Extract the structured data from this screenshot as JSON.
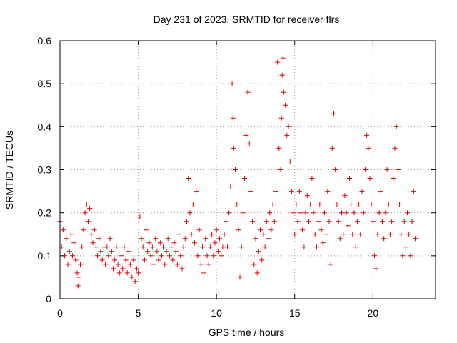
{
  "chart_data": {
    "type": "scatter",
    "title": "Day 231 of 2023, SRMTID for receiver flrs",
    "xlabel": "GPS time / hours",
    "ylabel": "SRMTID / TECUs",
    "xlim": [
      0,
      24
    ],
    "ylim": [
      0,
      0.6
    ],
    "xticks": [
      0,
      5,
      10,
      15,
      20
    ],
    "xtick_labels": [
      "0",
      "5",
      "10",
      "15",
      "20"
    ],
    "yticks": [
      0,
      0.1,
      0.2,
      0.3,
      0.4,
      0.5,
      0.6
    ],
    "ytick_labels": [
      "0",
      "0.1",
      "0.2",
      "0.3",
      "0.4",
      "0.5",
      "0.6"
    ],
    "grid": true,
    "marker": "+",
    "color": "#e00000",
    "series": [
      {
        "name": "flrs",
        "points": [
          [
            0.0,
            0.18
          ],
          [
            0.1,
            0.12
          ],
          [
            0.2,
            0.16
          ],
          [
            0.3,
            0.1
          ],
          [
            0.4,
            0.14
          ],
          [
            0.5,
            0.08
          ],
          [
            0.6,
            0.11
          ],
          [
            0.7,
            0.15
          ],
          [
            0.8,
            0.1
          ],
          [
            0.9,
            0.13
          ],
          [
            1.0,
            0.09
          ],
          [
            1.1,
            0.06
          ],
          [
            1.15,
            0.03
          ],
          [
            1.2,
            0.05
          ],
          [
            1.3,
            0.08
          ],
          [
            1.4,
            0.12
          ],
          [
            1.5,
            0.16
          ],
          [
            1.6,
            0.2
          ],
          [
            1.7,
            0.22
          ],
          [
            1.8,
            0.18
          ],
          [
            1.9,
            0.21
          ],
          [
            2.0,
            0.15
          ],
          [
            2.1,
            0.13
          ],
          [
            2.2,
            0.16
          ],
          [
            2.3,
            0.12
          ],
          [
            2.4,
            0.1
          ],
          [
            2.5,
            0.14
          ],
          [
            2.6,
            0.11
          ],
          [
            2.7,
            0.09
          ],
          [
            2.8,
            0.12
          ],
          [
            2.9,
            0.08
          ],
          [
            3.0,
            0.12
          ],
          [
            3.1,
            0.1
          ],
          [
            3.2,
            0.14
          ],
          [
            3.3,
            0.11
          ],
          [
            3.4,
            0.07
          ],
          [
            3.5,
            0.09
          ],
          [
            3.6,
            0.12
          ],
          [
            3.7,
            0.08
          ],
          [
            3.8,
            0.06
          ],
          [
            3.9,
            0.1
          ],
          [
            4.0,
            0.07
          ],
          [
            4.1,
            0.12
          ],
          [
            4.2,
            0.09
          ],
          [
            4.3,
            0.06
          ],
          [
            4.4,
            0.11
          ],
          [
            4.5,
            0.08
          ],
          [
            4.6,
            0.05
          ],
          [
            4.7,
            0.09
          ],
          [
            4.8,
            0.04
          ],
          [
            4.9,
            0.07
          ],
          [
            5.0,
            0.06
          ],
          [
            5.1,
            0.19
          ],
          [
            5.2,
            0.14
          ],
          [
            5.3,
            0.12
          ],
          [
            5.4,
            0.09
          ],
          [
            5.5,
            0.16
          ],
          [
            5.6,
            0.11
          ],
          [
            5.7,
            0.13
          ],
          [
            5.8,
            0.1
          ],
          [
            5.9,
            0.12
          ],
          [
            6.0,
            0.08
          ],
          [
            6.1,
            0.14
          ],
          [
            6.2,
            0.11
          ],
          [
            6.3,
            0.09
          ],
          [
            6.4,
            0.13
          ],
          [
            6.5,
            0.1
          ],
          [
            6.6,
            0.12
          ],
          [
            6.7,
            0.08
          ],
          [
            6.8,
            0.11
          ],
          [
            6.9,
            0.14
          ],
          [
            7.0,
            0.1
          ],
          [
            7.1,
            0.12
          ],
          [
            7.2,
            0.09
          ],
          [
            7.3,
            0.13
          ],
          [
            7.4,
            0.11
          ],
          [
            7.5,
            0.08
          ],
          [
            7.6,
            0.15
          ],
          [
            7.7,
            0.1
          ],
          [
            7.8,
            0.07
          ],
          [
            7.9,
            0.12
          ],
          [
            8.0,
            0.14
          ],
          [
            8.1,
            0.18
          ],
          [
            8.2,
            0.28
          ],
          [
            8.3,
            0.2
          ],
          [
            8.4,
            0.15
          ],
          [
            8.5,
            0.22
          ],
          [
            8.6,
            0.13
          ],
          [
            8.7,
            0.25
          ],
          [
            8.8,
            0.1
          ],
          [
            8.9,
            0.16
          ],
          [
            9.0,
            0.08
          ],
          [
            9.1,
            0.12
          ],
          [
            9.2,
            0.06
          ],
          [
            9.3,
            0.14
          ],
          [
            9.4,
            0.1
          ],
          [
            9.5,
            0.08
          ],
          [
            9.6,
            0.12
          ],
          [
            9.7,
            0.15
          ],
          [
            9.8,
            0.1
          ],
          [
            9.9,
            0.13
          ],
          [
            10.0,
            0.16
          ],
          [
            10.1,
            0.11
          ],
          [
            10.2,
            0.14
          ],
          [
            10.3,
            0.1
          ],
          [
            10.4,
            0.12
          ],
          [
            10.5,
            0.15
          ],
          [
            10.6,
            0.18
          ],
          [
            10.7,
            0.12
          ],
          [
            10.8,
            0.2
          ],
          [
            10.9,
            0.26
          ],
          [
            11.0,
            0.5
          ],
          [
            11.05,
            0.42
          ],
          [
            11.1,
            0.35
          ],
          [
            11.2,
            0.3
          ],
          [
            11.3,
            0.22
          ],
          [
            11.4,
            0.16
          ],
          [
            11.5,
            0.05
          ],
          [
            11.6,
            0.12
          ],
          [
            11.7,
            0.2
          ],
          [
            11.8,
            0.28
          ],
          [
            11.9,
            0.38
          ],
          [
            12.0,
            0.48
          ],
          [
            12.1,
            0.36
          ],
          [
            12.2,
            0.25
          ],
          [
            12.3,
            0.18
          ],
          [
            12.4,
            0.08
          ],
          [
            12.5,
            0.14
          ],
          [
            12.6,
            0.06
          ],
          [
            12.7,
            0.11
          ],
          [
            12.8,
            0.16
          ],
          [
            12.9,
            0.09
          ],
          [
            13.0,
            0.15
          ],
          [
            13.1,
            0.12
          ],
          [
            13.2,
            0.18
          ],
          [
            13.3,
            0.14
          ],
          [
            13.4,
            0.2
          ],
          [
            13.5,
            0.16
          ],
          [
            13.6,
            0.22
          ],
          [
            13.7,
            0.18
          ],
          [
            13.8,
            0.25
          ],
          [
            13.9,
            0.55
          ],
          [
            14.0,
            0.35
          ],
          [
            14.1,
            0.3
          ],
          [
            14.15,
            0.42
          ],
          [
            14.2,
            0.52
          ],
          [
            14.25,
            0.56
          ],
          [
            14.3,
            0.48
          ],
          [
            14.4,
            0.45
          ],
          [
            14.5,
            0.38
          ],
          [
            14.6,
            0.4
          ],
          [
            14.7,
            0.32
          ],
          [
            14.8,
            0.25
          ],
          [
            14.9,
            0.2
          ],
          [
            15.0,
            0.15
          ],
          [
            15.1,
            0.22
          ],
          [
            15.2,
            0.18
          ],
          [
            15.3,
            0.25
          ],
          [
            15.4,
            0.2
          ],
          [
            15.5,
            0.16
          ],
          [
            15.6,
            0.12
          ],
          [
            15.7,
            0.2
          ],
          [
            15.8,
            0.24
          ],
          [
            15.9,
            0.18
          ],
          [
            16.0,
            0.22
          ],
          [
            16.1,
            0.28
          ],
          [
            16.2,
            0.2
          ],
          [
            16.3,
            0.15
          ],
          [
            16.4,
            0.12
          ],
          [
            16.5,
            0.18
          ],
          [
            16.6,
            0.22
          ],
          [
            16.7,
            0.16
          ],
          [
            16.8,
            0.13
          ],
          [
            16.9,
            0.2
          ],
          [
            17.0,
            0.15
          ],
          [
            17.1,
            0.25
          ],
          [
            17.2,
            0.18
          ],
          [
            17.3,
            0.08
          ],
          [
            17.4,
            0.35
          ],
          [
            17.5,
            0.43
          ],
          [
            17.6,
            0.3
          ],
          [
            17.7,
            0.22
          ],
          [
            17.8,
            0.18
          ],
          [
            17.9,
            0.14
          ],
          [
            18.0,
            0.2
          ],
          [
            18.1,
            0.15
          ],
          [
            18.2,
            0.24
          ],
          [
            18.3,
            0.2
          ],
          [
            18.4,
            0.17
          ],
          [
            18.5,
            0.28
          ],
          [
            18.6,
            0.22
          ],
          [
            18.7,
            0.15
          ],
          [
            18.8,
            0.2
          ],
          [
            18.9,
            0.12
          ],
          [
            19.0,
            0.18
          ],
          [
            19.1,
            0.22
          ],
          [
            19.2,
            0.15
          ],
          [
            19.3,
            0.25
          ],
          [
            19.4,
            0.2
          ],
          [
            19.5,
            0.3
          ],
          [
            19.6,
            0.38
          ],
          [
            19.7,
            0.35
          ],
          [
            19.8,
            0.28
          ],
          [
            19.9,
            0.22
          ],
          [
            20.0,
            0.18
          ],
          [
            20.1,
            0.1
          ],
          [
            20.2,
            0.07
          ],
          [
            20.3,
            0.15
          ],
          [
            20.4,
            0.2
          ],
          [
            20.5,
            0.25
          ],
          [
            20.6,
            0.18
          ],
          [
            20.7,
            0.14
          ],
          [
            20.8,
            0.2
          ],
          [
            20.9,
            0.3
          ],
          [
            21.0,
            0.22
          ],
          [
            21.1,
            0.15
          ],
          [
            21.2,
            0.18
          ],
          [
            21.3,
            0.28
          ],
          [
            21.4,
            0.35
          ],
          [
            21.5,
            0.4
          ],
          [
            21.6,
            0.3
          ],
          [
            21.7,
            0.22
          ],
          [
            21.8,
            0.15
          ],
          [
            21.9,
            0.1
          ],
          [
            22.0,
            0.18
          ],
          [
            22.1,
            0.12
          ],
          [
            22.2,
            0.2
          ],
          [
            22.3,
            0.15
          ],
          [
            22.4,
            0.1
          ],
          [
            22.5,
            0.18
          ],
          [
            22.6,
            0.25
          ],
          [
            22.7,
            0.14
          ]
        ]
      }
    ]
  }
}
